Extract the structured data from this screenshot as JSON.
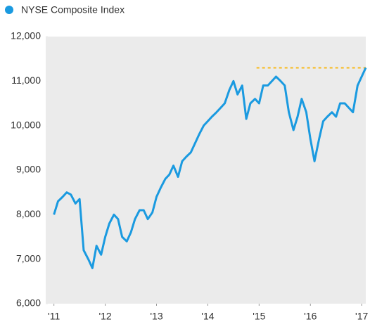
{
  "chart_data": {
    "type": "line",
    "series": [
      {
        "name": "NYSE Composite Index",
        "color": "#1a9ae0",
        "x": [
          2011.0,
          2011.08,
          2011.17,
          2011.25,
          2011.33,
          2011.42,
          2011.5,
          2011.58,
          2011.67,
          2011.75,
          2011.83,
          2011.92,
          2012.0,
          2012.08,
          2012.17,
          2012.25,
          2012.33,
          2012.42,
          2012.5,
          2012.58,
          2012.67,
          2012.75,
          2012.83,
          2012.92,
          2013.0,
          2013.08,
          2013.17,
          2013.25,
          2013.33,
          2013.42,
          2013.5,
          2013.58,
          2013.67,
          2013.75,
          2013.83,
          2013.92,
          2014.0,
          2014.08,
          2014.17,
          2014.25,
          2014.33,
          2014.42,
          2014.5,
          2014.58,
          2014.67,
          2014.75,
          2014.83,
          2014.92,
          2015.0,
          2015.08,
          2015.17,
          2015.25,
          2015.33,
          2015.42,
          2015.5,
          2015.58,
          2015.67,
          2015.75,
          2015.83,
          2015.92,
          2016.0,
          2016.08,
          2016.17,
          2016.25,
          2016.33,
          2016.42,
          2016.5,
          2016.58,
          2016.67,
          2016.75,
          2016.83,
          2016.92,
          2017.0,
          2017.08
        ],
        "values": [
          8000,
          8300,
          8400,
          8500,
          8450,
          8250,
          8350,
          7200,
          7000,
          6800,
          7300,
          7100,
          7500,
          7800,
          8000,
          7900,
          7500,
          7400,
          7600,
          7900,
          8100,
          8100,
          7900,
          8050,
          8400,
          8600,
          8800,
          8900,
          9100,
          8850,
          9200,
          9300,
          9400,
          9600,
          9800,
          10000,
          10100,
          10200,
          10300,
          10400,
          10500,
          10800,
          11000,
          10700,
          10900,
          10150,
          10500,
          10600,
          10500,
          10900,
          10900,
          11000,
          11100,
          11000,
          10900,
          10300,
          9900,
          10200,
          10600,
          10300,
          9700,
          9200,
          9700,
          10100,
          10200,
          10300,
          10200,
          10500,
          10500,
          10400,
          10300,
          10900,
          11100,
          11300
        ]
      }
    ],
    "reference_line": {
      "y": 11300,
      "x": [
        2014.95,
        2017.08
      ],
      "color": "#f5c342"
    },
    "xlim": [
      2010.84,
      2017.08
    ],
    "xticks": [
      {
        "value": 2011,
        "label": "'11"
      },
      {
        "value": 2012,
        "label": "'12"
      },
      {
        "value": 2013,
        "label": "'13"
      },
      {
        "value": 2014,
        "label": "'14"
      },
      {
        "value": 2015,
        "label": "'15"
      },
      {
        "value": 2016,
        "label": "'16"
      },
      {
        "value": 2017,
        "label": "'17"
      }
    ],
    "ylim": [
      6000,
      12000
    ],
    "yticks": [
      {
        "value": 6000,
        "label": "6,000"
      },
      {
        "value": 7000,
        "label": "7,000"
      },
      {
        "value": 8000,
        "label": "8,000"
      },
      {
        "value": 9000,
        "label": "9,000"
      },
      {
        "value": 10000,
        "label": "10,000"
      },
      {
        "value": 11000,
        "label": "11,000"
      },
      {
        "value": 12000,
        "label": "12,000"
      }
    ]
  }
}
